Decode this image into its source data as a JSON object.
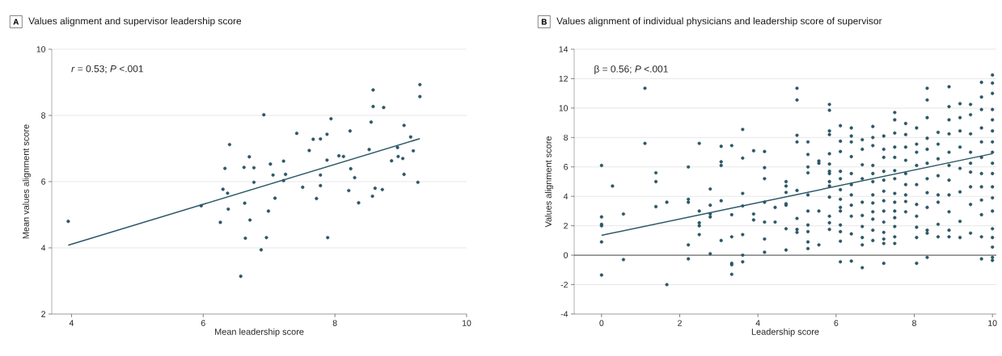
{
  "chart_data": [
    {
      "type": "scatter",
      "title": "Values alignment and supervisor leadership score",
      "xlabel": "Mean leadership score",
      "ylabel": "Mean values alignment score",
      "annotations": [
        "A",
        "*r* = 0.53; *P* <.001"
      ],
      "xlim": [
        3.7,
        10
      ],
      "ylim": [
        2,
        10
      ],
      "xticks": [
        4,
        6,
        8,
        10
      ],
      "yticks": [
        2,
        4,
        6,
        8,
        10
      ],
      "grid": "y",
      "series": [
        {
          "color": "#2a5766",
          "marker": "circle",
          "x": [
            3.95,
            5.97,
            6.26,
            6.3,
            6.33,
            6.37,
            6.38,
            6.4,
            6.62,
            6.63,
            6.64,
            6.7,
            6.71,
            6.77,
            6.77,
            6.57,
            6.88,
            6.92,
            6.96,
            6.99,
            7.02,
            7.06,
            7.09,
            7.22,
            7.22,
            7.25,
            7.42,
            7.51,
            7.61,
            7.67,
            7.72,
            7.78,
            7.78,
            7.78,
            7.88,
            7.88,
            7.89,
            7.94,
            8.06,
            8.13,
            8.21,
            8.23,
            8.24,
            8.3,
            8.36,
            8.52,
            8.55,
            8.57,
            8.58,
            8.58,
            8.61,
            8.74,
            8.72,
            8.86,
            8.95,
            8.96,
            9.03,
            9.05,
            9.05,
            9.15,
            9.19,
            9.26,
            9.29,
            9.29
          ],
          "values": [
            4.8,
            5.27,
            4.77,
            5.77,
            6.4,
            5.65,
            5.17,
            7.12,
            6.43,
            5.35,
            4.29,
            6.75,
            4.84,
            6.42,
            5.98,
            3.14,
            3.94,
            8.02,
            4.31,
            5.11,
            6.53,
            6.2,
            5.5,
            6.62,
            6.03,
            6.22,
            7.46,
            5.83,
            6.94,
            7.28,
            5.49,
            7.29,
            6.2,
            5.88,
            7.43,
            6.65,
            4.31,
            7.9,
            6.78,
            6.76,
            5.73,
            7.53,
            6.39,
            6.12,
            5.36,
            6.97,
            7.8,
            5.56,
            8.77,
            8.27,
            5.8,
            8.24,
            5.76,
            6.63,
            7.03,
            6.76,
            6.7,
            7.7,
            6.22,
            7.35,
            6.93,
            5.98,
            8.93,
            8.57
          ]
        },
        {
          "type": "line",
          "color": "#2a5766",
          "marker": "none",
          "line_style": "solid",
          "x": [
            3.95,
            9.29
          ],
          "values": [
            4.08,
            7.3
          ]
        }
      ]
    },
    {
      "type": "scatter",
      "title": "Values alignment of individual physicians and leadership score of supervisor",
      "xlabel": "Leadership score",
      "ylabel": "Values alignment score",
      "annotations": [
        "B",
        "β = 0.56; *P* <.001"
      ],
      "xlim": [
        -0.7,
        10.1
      ],
      "ylim": [
        -4,
        14
      ],
      "xticks": [
        0,
        2,
        4,
        6,
        8,
        10
      ],
      "yticks": [
        -4,
        -2,
        0,
        2,
        4,
        6,
        8,
        10,
        12,
        14
      ],
      "grid": "y",
      "ref_lines": [
        {
          "axis": "y",
          "value": 0,
          "color": "#222222"
        }
      ],
      "series": [
        {
          "color": "#2a5766",
          "marker": "circle",
          "x": [
            0,
            0,
            0,
            0,
            0,
            0,
            0.28,
            0.56,
            0.56,
            1.11,
            1.11,
            1.39,
            1.39,
            1.39,
            1.67,
            1.67,
            2.22,
            2.22,
            2.22,
            2.22,
            2.22,
            2.5,
            2.5,
            2.5,
            2.5,
            2.5,
            2.78,
            2.78,
            2.78,
            2.78,
            2.78,
            3.06,
            3.06,
            3.06,
            3.06,
            3.06,
            3.33,
            3.33,
            3.33,
            3.33,
            3.33,
            3.33,
            3.61,
            3.61,
            3.61,
            3.61,
            3.61,
            3.61,
            3.61,
            3.89,
            3.89,
            3.89,
            4.17,
            4.17,
            4.17,
            4.17,
            4.17,
            4.17,
            4.17,
            4.44,
            4.44,
            4.72,
            4.72,
            4.72,
            4.72,
            4.72,
            4.72,
            4.72,
            5,
            5,
            5,
            5,
            5,
            5,
            5,
            5,
            5.28,
            5.28,
            5.28,
            5.28,
            5.28,
            5.28,
            5.28,
            5.28,
            5.28,
            5.28,
            5.56,
            5.56,
            5.56,
            5.56,
            5.83,
            5.83,
            5.83,
            5.83,
            5.83,
            5.83,
            5.83,
            5.83,
            5.83,
            5.83,
            5.83,
            5.83,
            5.83,
            5.83,
            6.11,
            6.11,
            6.11,
            6.11,
            6.11,
            6.11,
            6.11,
            6.11,
            6.11,
            6.11,
            6.11,
            6.11,
            6.11,
            6.39,
            6.39,
            6.39,
            6.39,
            6.39,
            6.39,
            6.39,
            6.39,
            6.39,
            6.39,
            6.39,
            6.67,
            6.67,
            6.67,
            6.67,
            6.67,
            6.67,
            6.67,
            6.67,
            6.67,
            6.67,
            6.94,
            6.94,
            6.94,
            6.94,
            6.94,
            6.94,
            6.94,
            6.94,
            6.94,
            6.94,
            6.94,
            6.94,
            7.22,
            7.22,
            7.22,
            7.22,
            7.22,
            7.22,
            7.22,
            7.22,
            7.22,
            7.22,
            7.22,
            7.22,
            7.22,
            7.5,
            7.5,
            7.5,
            7.5,
            7.5,
            7.5,
            7.5,
            7.5,
            7.5,
            7.5,
            7.5,
            7.5,
            7.5,
            7.5,
            7.78,
            7.78,
            7.78,
            7.78,
            7.78,
            7.78,
            7.78,
            7.78,
            7.78,
            8.06,
            8.06,
            8.06,
            8.06,
            8.06,
            8.06,
            8.06,
            8.06,
            8.06,
            8.06,
            8.33,
            8.33,
            8.33,
            8.33,
            8.33,
            8.33,
            8.33,
            8.33,
            8.33,
            8.33,
            8.33,
            8.33,
            8.61,
            8.61,
            8.61,
            8.61,
            8.61,
            8.61,
            8.61,
            8.61,
            8.89,
            8.89,
            8.89,
            8.89,
            8.89,
            8.89,
            8.89,
            8.89,
            8.89,
            8.89,
            8.89,
            9.17,
            9.17,
            9.17,
            9.17,
            9.17,
            9.17,
            9.17,
            9.17,
            9.44,
            9.44,
            9.44,
            9.44,
            9.44,
            9.44,
            9.44,
            9.44,
            9.44,
            9.72,
            9.72,
            9.72,
            9.72,
            9.72,
            9.72,
            9.72,
            9.72,
            9.72,
            9.72,
            9.72,
            9.72,
            10,
            10,
            10,
            10,
            10,
            10,
            10,
            10,
            10,
            10,
            10,
            10,
            10,
            10,
            10,
            10,
            10,
            10
          ],
          "values": [
            6.1,
            2.6,
            2.1,
            2.0,
            0.9,
            -1.35,
            4.7,
            2.8,
            -0.3,
            11.35,
            7.6,
            5.6,
            5.0,
            3.3,
            3.6,
            -2.0,
            6.0,
            3.8,
            3.6,
            0.7,
            -0.25,
            7.6,
            3.0,
            2.2,
            2.0,
            1.4,
            4.5,
            3.4,
            2.8,
            2.6,
            0.1,
            7.4,
            6.35,
            6.1,
            3.7,
            1.0,
            7.45,
            2.75,
            1.25,
            -0.55,
            -0.65,
            -1.3,
            8.55,
            6.6,
            4.2,
            3.35,
            1.4,
            0.0,
            -0.45,
            7.1,
            2.8,
            2.4,
            7.05,
            5.95,
            5.2,
            3.6,
            2.25,
            1.1,
            0.2,
            3.25,
            2.25,
            5.0,
            4.7,
            4.27,
            3.5,
            3.4,
            1.8,
            0.35,
            11.35,
            10.55,
            8.15,
            7.7,
            4.4,
            2.5,
            1.75,
            1.55,
            7.7,
            6.85,
            6.0,
            5.6,
            4.1,
            3.0,
            2.05,
            1.6,
            0.9,
            0.45,
            6.4,
            6.25,
            3.0,
            0.7,
            10.25,
            9.85,
            8.45,
            8.2,
            6.9,
            6.2,
            5.7,
            5.55,
            5.0,
            4.7,
            3.95,
            2.65,
            2.2,
            1.75,
            8.8,
            7.75,
            7.05,
            5.7,
            5.2,
            4.45,
            3.8,
            3.25,
            3.0,
            2.05,
            1.6,
            0.95,
            -0.45,
            8.65,
            8.1,
            7.7,
            6.7,
            5.55,
            4.8,
            4.1,
            3.4,
            2.65,
            1.45,
            -0.4,
            7.85,
            7.2,
            6.15,
            5.2,
            3.6,
            2.7,
            1.95,
            1.2,
            0.7,
            -0.85,
            8.75,
            8.0,
            7.45,
            6.1,
            5.55,
            5.0,
            4.1,
            3.55,
            2.95,
            2.45,
            1.7,
            1.0,
            8.1,
            7.2,
            6.65,
            5.7,
            5.1,
            4.35,
            3.7,
            3.0,
            2.25,
            1.55,
            1.1,
            0.8,
            -0.55,
            9.7,
            9.2,
            8.3,
            7.35,
            6.65,
            5.75,
            5.2,
            4.2,
            3.6,
            3.0,
            2.55,
            1.95,
            1.25,
            0.8,
            8.95,
            8.2,
            7.35,
            6.45,
            5.55,
            4.8,
            4.1,
            3.65,
            2.95,
            8.65,
            7.55,
            7.0,
            6.1,
            4.8,
            3.45,
            2.65,
            1.9,
            1.2,
            -0.55,
            11.35,
            10.55,
            9.35,
            7.95,
            7.2,
            6.25,
            5.2,
            4.25,
            3.25,
            1.7,
            1.5,
            -0.15,
            8.35,
            7.55,
            6.55,
            5.4,
            4.1,
            3.6,
            2.1,
            1.25,
            11.45,
            10.1,
            9.2,
            8.25,
            7.0,
            6.1,
            5.1,
            4.1,
            2.95,
            1.7,
            1.25,
            10.3,
            9.35,
            8.45,
            7.35,
            5.9,
            4.3,
            2.3,
            1.2,
            10.25,
            9.55,
            8.25,
            7.0,
            6.25,
            5.65,
            4.65,
            3.45,
            1.5,
            11.75,
            10.75,
            9.9,
            8.65,
            7.7,
            6.65,
            5.55,
            4.65,
            3.75,
            2.75,
            1.25,
            -0.25,
            12.25,
            11.7,
            11.0,
            9.9,
            9.2,
            8.45,
            7.7,
            7.0,
            6.25,
            5.55,
            4.65,
            3.9,
            3.0,
            1.8,
            1.2,
            0.55,
            -0.15,
            -0.35
          ]
        },
        {
          "type": "line",
          "color": "#2a5766",
          "marker": "none",
          "line_style": "solid",
          "x": [
            0,
            10
          ],
          "values": [
            1.35,
            6.9
          ]
        }
      ]
    }
  ]
}
